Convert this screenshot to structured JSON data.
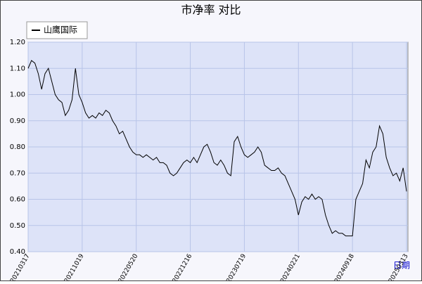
{
  "chart_data": {
    "type": "line",
    "title": "市净率 对比",
    "x_label": "日期",
    "categories": [
      "20210317",
      null,
      null,
      null,
      null,
      null,
      null,
      null,
      null,
      null,
      null,
      null,
      null,
      null,
      null,
      null,
      "20211019",
      null,
      null,
      null,
      null,
      null,
      null,
      null,
      null,
      null,
      null,
      null,
      null,
      null,
      null,
      null,
      "20220520",
      null,
      null,
      null,
      null,
      null,
      null,
      null,
      null,
      null,
      null,
      null,
      null,
      null,
      null,
      null,
      "20221216",
      null,
      null,
      null,
      null,
      null,
      null,
      null,
      null,
      null,
      null,
      null,
      null,
      null,
      null,
      null,
      "20230719",
      null,
      null,
      null,
      null,
      null,
      null,
      null,
      null,
      null,
      null,
      null,
      null,
      null,
      null,
      null,
      "20240221",
      null,
      null,
      null,
      null,
      null,
      null,
      null,
      null,
      null,
      null,
      null,
      null,
      null,
      null,
      null,
      "20240918",
      null,
      null,
      null,
      null,
      null,
      null,
      null,
      null,
      null,
      null,
      null,
      null,
      null,
      null,
      null,
      "20250313"
    ],
    "series": [
      {
        "name": "山鹰国际",
        "color": "#000000",
        "values": [
          1.1,
          1.13,
          1.12,
          1.08,
          1.02,
          1.08,
          1.1,
          1.05,
          1.0,
          0.98,
          0.97,
          0.92,
          0.94,
          0.98,
          1.1,
          1.0,
          0.97,
          0.93,
          0.91,
          0.92,
          0.91,
          0.93,
          0.92,
          0.94,
          0.93,
          0.9,
          0.88,
          0.85,
          0.86,
          0.83,
          0.8,
          0.78,
          0.77,
          0.77,
          0.76,
          0.77,
          0.76,
          0.75,
          0.76,
          0.74,
          0.74,
          0.73,
          0.7,
          0.69,
          0.7,
          0.72,
          0.74,
          0.75,
          0.74,
          0.76,
          0.74,
          0.77,
          0.8,
          0.81,
          0.78,
          0.74,
          0.73,
          0.75,
          0.73,
          0.7,
          0.69,
          0.82,
          0.84,
          0.8,
          0.77,
          0.76,
          0.77,
          0.78,
          0.8,
          0.78,
          0.73,
          0.72,
          0.71,
          0.71,
          0.72,
          0.7,
          0.69,
          0.66,
          0.63,
          0.6,
          0.54,
          0.59,
          0.61,
          0.6,
          0.62,
          0.6,
          0.61,
          0.6,
          0.54,
          0.5,
          0.47,
          0.48,
          0.47,
          0.47,
          0.46,
          0.46,
          0.46,
          0.6,
          0.63,
          0.66,
          0.75,
          0.72,
          0.78,
          0.8,
          0.88,
          0.85,
          0.76,
          0.72,
          0.69,
          0.7,
          0.67,
          0.72,
          0.63
        ]
      }
    ],
    "ylim": [
      0.4,
      1.2
    ],
    "yticks": [
      {
        "value": 0.4,
        "label": "0.40"
      },
      {
        "value": 0.5,
        "label": "0.50"
      },
      {
        "value": 0.6,
        "label": "0.60"
      },
      {
        "value": 0.7,
        "label": "0.70"
      },
      {
        "value": 0.8,
        "label": "0.80"
      },
      {
        "value": 0.9,
        "label": "0.90"
      },
      {
        "value": 1.0,
        "label": "1.00"
      },
      {
        "value": 1.1,
        "label": "1.10"
      },
      {
        "value": 1.2,
        "label": "1.20"
      }
    ],
    "grid": true
  }
}
